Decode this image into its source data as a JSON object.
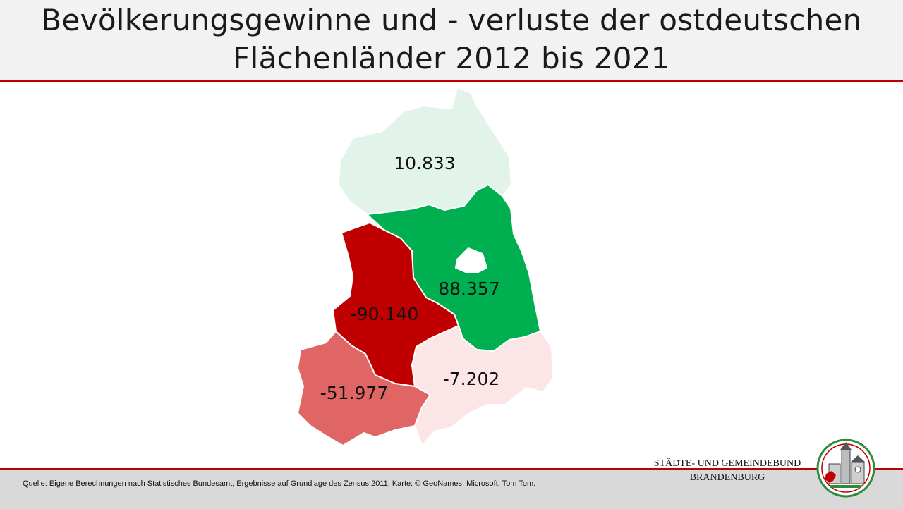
{
  "title": {
    "line1": "Bevölkerungsgewinne und - verluste der ostdeutschen",
    "line2": "Flächenländer 2012 bis 2021"
  },
  "map": {
    "regions": [
      {
        "id": "mecklenburg-vorpommern",
        "label": "10.833",
        "value": 10833,
        "color": "#e2f4ea"
      },
      {
        "id": "brandenburg",
        "label": "88.357",
        "value": 88357,
        "color": "#00b050"
      },
      {
        "id": "sachsen-anhalt",
        "label": "-90.140",
        "value": -90140,
        "color": "#c00000"
      },
      {
        "id": "thueringen",
        "label": "-51.977",
        "value": -51977,
        "color": "#e06666"
      },
      {
        "id": "sachsen",
        "label": "-7.202",
        "value": -7202,
        "color": "#fbe5e6"
      }
    ],
    "berlin_color": "#ffffff"
  },
  "footer": {
    "source": "Quelle: Eigene Berechnungen  nach Statistisches Bundesamt, Ergebnisse auf Grundlage des Zensus 2011, Karte:  © GeoNames,  Microsoft, Tom Tom."
  },
  "organization": {
    "line1": "STÄDTE-  UND GEMEINDEBUND",
    "line2": "BRANDENBURG"
  },
  "colors": {
    "accent_red": "#c00000",
    "title_bar": "#f2f2f2",
    "footer_bar": "#d9d9d9"
  },
  "icons": {
    "logo": "staedte-gemeindebund-emblem"
  }
}
